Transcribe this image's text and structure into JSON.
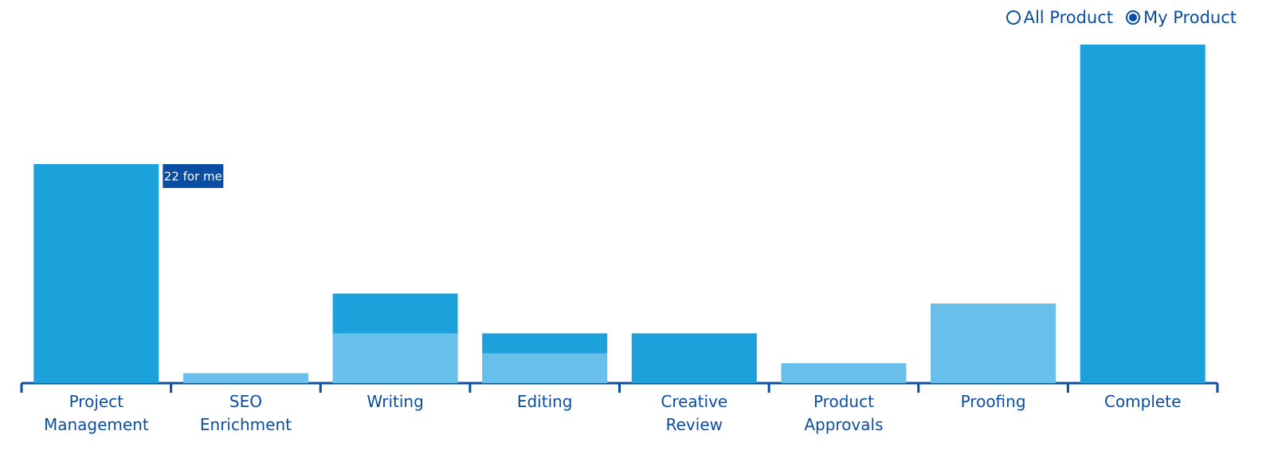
{
  "chart_data": {
    "type": "stacked-bar",
    "categories": [
      "Project Management",
      "SEO Enrichment",
      "Writing",
      "Editing",
      "Creative Review",
      "Product Approvals",
      "Proofing",
      "Complete"
    ],
    "series": [
      {
        "color": "#67bfea",
        "values": [
          0,
          1,
          5,
          3,
          0,
          2,
          8,
          0
        ]
      },
      {
        "color": "#1da1db",
        "values": [
          22,
          0,
          4,
          2,
          5,
          0,
          0,
          34
        ],
        "value_labels": [
          "22 for me",
          null,
          null,
          null,
          null,
          null,
          null,
          null
        ]
      }
    ]
  },
  "controls": {
    "options": [
      {
        "label": "All Product",
        "selected": false
      },
      {
        "label": "My Product",
        "selected": true
      }
    ]
  }
}
